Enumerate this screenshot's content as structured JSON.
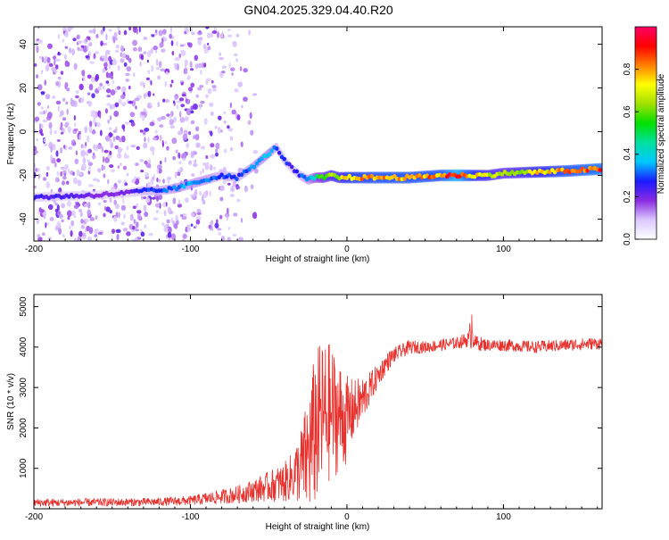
{
  "title": "GN04.2025.329.04.40.R20",
  "colors": {
    "snr_line": "#e8302c",
    "axis": "#000000",
    "background": "#ffffff"
  },
  "colorbar": {
    "label": "Normalized spectral amplitude",
    "range": [
      0.0,
      1.0
    ],
    "ticks": [
      "0.0",
      "0.2",
      "0.4",
      "0.6",
      "0.8"
    ],
    "tick_values": [
      0.0,
      0.2,
      0.4,
      0.6,
      0.8
    ],
    "stops": [
      "#ffffff",
      "#dcc8ff",
      "#8a2be2",
      "#1a1aff",
      "#00c8ff",
      "#00e0a0",
      "#00e000",
      "#a0e000",
      "#ffff00",
      "#ff8000",
      "#ff0000",
      "#ff0066"
    ]
  },
  "chart_data": [
    {
      "type": "heatmap",
      "name": "spectrogram",
      "title": "GN04.2025.329.04.40.R20",
      "xlabel": "Height of straight line (km)",
      "ylabel": "Frequency (Hz)",
      "xlim": [
        -200,
        163
      ],
      "ylim": [
        -50,
        48
      ],
      "xticks": [
        -200,
        -100,
        0,
        100
      ],
      "xtick_labels": [
        "-200",
        "-100",
        "0",
        "100"
      ],
      "yticks": [
        -40,
        -20,
        0,
        20,
        40
      ],
      "ytick_labels": [
        "-40",
        "-20",
        "0",
        "20",
        "40"
      ],
      "ridge_x": [
        -200,
        -180,
        -160,
        -140,
        -130,
        -120,
        -110,
        -100,
        -90,
        -80,
        -70,
        -60,
        -50,
        -45,
        -40,
        -35,
        -30,
        -25,
        -20,
        -15,
        -10,
        -5,
        0,
        20,
        40,
        60,
        70,
        80,
        90,
        100,
        120,
        140,
        163
      ],
      "ridge_freq": [
        -30,
        -29.5,
        -29,
        -28,
        -27,
        -27,
        -26,
        -24,
        -22,
        -20,
        -21,
        -16,
        -10,
        -7,
        -13,
        -17,
        -20,
        -22,
        -21,
        -21,
        -20,
        -21,
        -21,
        -21,
        -21,
        -20,
        -20,
        -20,
        -20,
        -19,
        -18.5,
        -18,
        -17
      ],
      "ridge_amplitude": [
        0.25,
        0.25,
        0.2,
        0.2,
        0.3,
        0.3,
        0.35,
        0.35,
        0.35,
        0.3,
        0.3,
        0.35,
        0.4,
        0.3,
        0.3,
        0.25,
        0.3,
        0.35,
        0.5,
        0.6,
        0.7,
        0.7,
        0.8,
        0.85,
        0.85,
        0.85,
        1.0,
        0.8,
        0.7,
        0.65,
        0.75,
        0.85,
        0.9
      ],
      "noise_region_x": [
        -200,
        -95
      ]
    },
    {
      "type": "line",
      "name": "snr",
      "xlabel": "Height of straight line (km)",
      "ylabel": "SNR (10 * v/v)",
      "xlim": [
        -200,
        163
      ],
      "ylim": [
        0,
        5300
      ],
      "xticks": [
        -200,
        -100,
        0,
        100
      ],
      "xtick_labels": [
        "-200",
        "-100",
        "0",
        "100"
      ],
      "yticks": [
        1000,
        2000,
        3000,
        4000,
        5000
      ],
      "ytick_labels": [
        "1000",
        "2000",
        "3000",
        "4000",
        "5000"
      ],
      "x": [
        -200,
        -180,
        -160,
        -140,
        -120,
        -100,
        -90,
        -80,
        -70,
        -60,
        -50,
        -40,
        -35,
        -30,
        -25,
        -20,
        -15,
        -10,
        -5,
        0,
        5,
        10,
        15,
        20,
        25,
        30,
        35,
        40,
        50,
        60,
        70,
        78,
        80,
        82,
        90,
        100,
        120,
        140,
        163
      ],
      "values": [
        150,
        150,
        160,
        160,
        170,
        200,
        250,
        300,
        350,
        450,
        550,
        650,
        800,
        1000,
        1300,
        2000,
        2300,
        2400,
        2300,
        2200,
        2500,
        2700,
        3000,
        3300,
        3600,
        3800,
        3900,
        4000,
        4000,
        4050,
        4100,
        4200,
        4600,
        4100,
        4050,
        4050,
        4000,
        4050,
        4100
      ],
      "spread": [
        100,
        100,
        100,
        100,
        100,
        120,
        150,
        180,
        220,
        280,
        380,
        500,
        600,
        900,
        1500,
        2000,
        1900,
        1700,
        1400,
        1100,
        700,
        600,
        400,
        300,
        250,
        200,
        180,
        170,
        150,
        150,
        150,
        200,
        700,
        200,
        150,
        150,
        150,
        150,
        150
      ]
    }
  ]
}
